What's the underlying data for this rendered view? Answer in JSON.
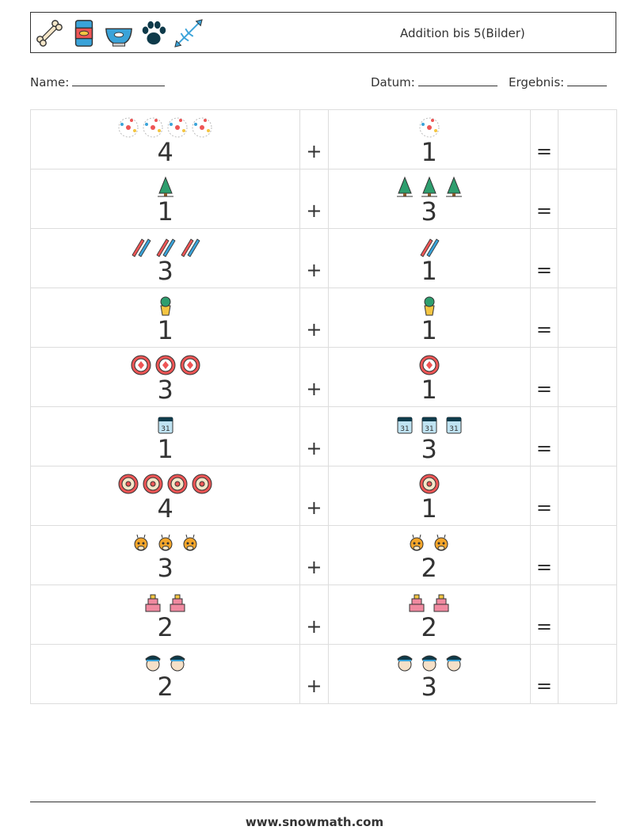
{
  "header": {
    "icons": [
      "bone-icon",
      "pet-food-can-icon",
      "fish-bowl-icon",
      "paw-print-icon",
      "fish-skeleton-icon"
    ],
    "title": "Addition bis 5(Bilder)"
  },
  "meta": {
    "name_label": "Name:",
    "date_label": "Datum:",
    "result_label": "Ergebnis:"
  },
  "operators": {
    "plus": "+",
    "equals": "="
  },
  "rows": [
    {
      "a": "4",
      "a_icon": "atom-icon",
      "b": "1",
      "b_icon": "atom-icon"
    },
    {
      "a": "1",
      "a_icon": "pine-tree-icon",
      "b": "3",
      "b_icon": "pine-tree-icon"
    },
    {
      "a": "3",
      "a_icon": "crayons-icon",
      "b": "1",
      "b_icon": "crayons-icon"
    },
    {
      "a": "1",
      "a_icon": "potted-plant-icon",
      "b": "1",
      "b_icon": "potted-plant-icon"
    },
    {
      "a": "3",
      "a_icon": "poker-chip-icon",
      "b": "1",
      "b_icon": "poker-chip-icon"
    },
    {
      "a": "1",
      "a_icon": "calendar-icon",
      "b": "3",
      "b_icon": "calendar-icon"
    },
    {
      "a": "4",
      "a_icon": "dartboard-icon",
      "b": "1",
      "b_icon": "dartboard-icon"
    },
    {
      "a": "3",
      "a_icon": "giraffe-icon",
      "b": "2",
      "b_icon": "giraffe-icon"
    },
    {
      "a": "2",
      "a_icon": "cake-icon",
      "b": "2",
      "b_icon": "cake-icon"
    },
    {
      "a": "2",
      "a_icon": "police-officer-icon",
      "b": "3",
      "b_icon": "police-officer-icon"
    }
  ],
  "footer": {
    "url": "www.snowmath.com"
  }
}
